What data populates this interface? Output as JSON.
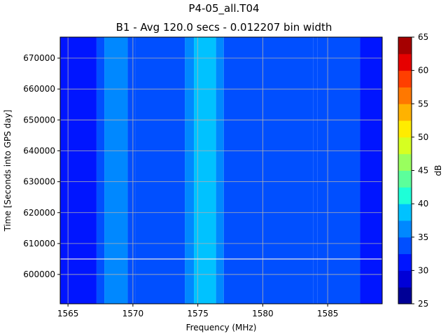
{
  "chart_data": {
    "type": "heatmap",
    "title": "P4-05_all.T04",
    "subtitle": "B1 - Avg 120.0 secs - 0.012207 bin width",
    "xlabel": "Frequency (MHz)",
    "ylabel": "Time [Seconds into GPS day]",
    "xlim": [
      1564.4,
      1589.2
    ],
    "ylim": [
      590500,
      676800
    ],
    "xticks": [
      1565,
      1570,
      1575,
      1580,
      1585
    ],
    "yticks": [
      600000,
      610000,
      620000,
      630000,
      640000,
      650000,
      660000,
      670000
    ],
    "grid": true,
    "colorbar": {
      "label": "dB",
      "min": 25,
      "max": 65,
      "step": 2.5,
      "ticks": [
        25,
        30,
        35,
        40,
        45,
        50,
        55,
        60,
        65
      ],
      "colors": [
        "#000096",
        "#0000d7",
        "#0015ff",
        "#004fff",
        "#0088ff",
        "#00c2ff",
        "#1effd8",
        "#5cff9b",
        "#99ff5e",
        "#d6ff21",
        "#ffec00",
        "#ffb200",
        "#ff7800",
        "#ff3f00",
        "#e60000",
        "#a50000"
      ]
    },
    "frequency_bands": [
      {
        "start": 1564.4,
        "end": 1565.0,
        "level_db": 30.0
      },
      {
        "start": 1565.0,
        "end": 1567.2,
        "level_db": 31.3
      },
      {
        "start": 1567.2,
        "end": 1567.8,
        "level_db": 34.5
      },
      {
        "start": 1567.8,
        "end": 1569.6,
        "level_db": 36.2
      },
      {
        "start": 1569.6,
        "end": 1570.2,
        "level_db": 34.0
      },
      {
        "start": 1570.2,
        "end": 1574.0,
        "level_db": 32.6
      },
      {
        "start": 1574.0,
        "end": 1574.7,
        "level_db": 36.2
      },
      {
        "start": 1574.7,
        "end": 1576.4,
        "level_db": 38.5
      },
      {
        "start": 1576.4,
        "end": 1577.0,
        "level_db": 36.2
      },
      {
        "start": 1577.0,
        "end": 1583.9,
        "level_db": 32.6
      },
      {
        "start": 1583.9,
        "end": 1584.2,
        "level_db": 34.0
      },
      {
        "start": 1584.2,
        "end": 1587.5,
        "level_db": 32.6
      },
      {
        "start": 1587.5,
        "end": 1589.2,
        "level_db": 30.0
      }
    ],
    "horizontal_marker_s": 605000
  }
}
